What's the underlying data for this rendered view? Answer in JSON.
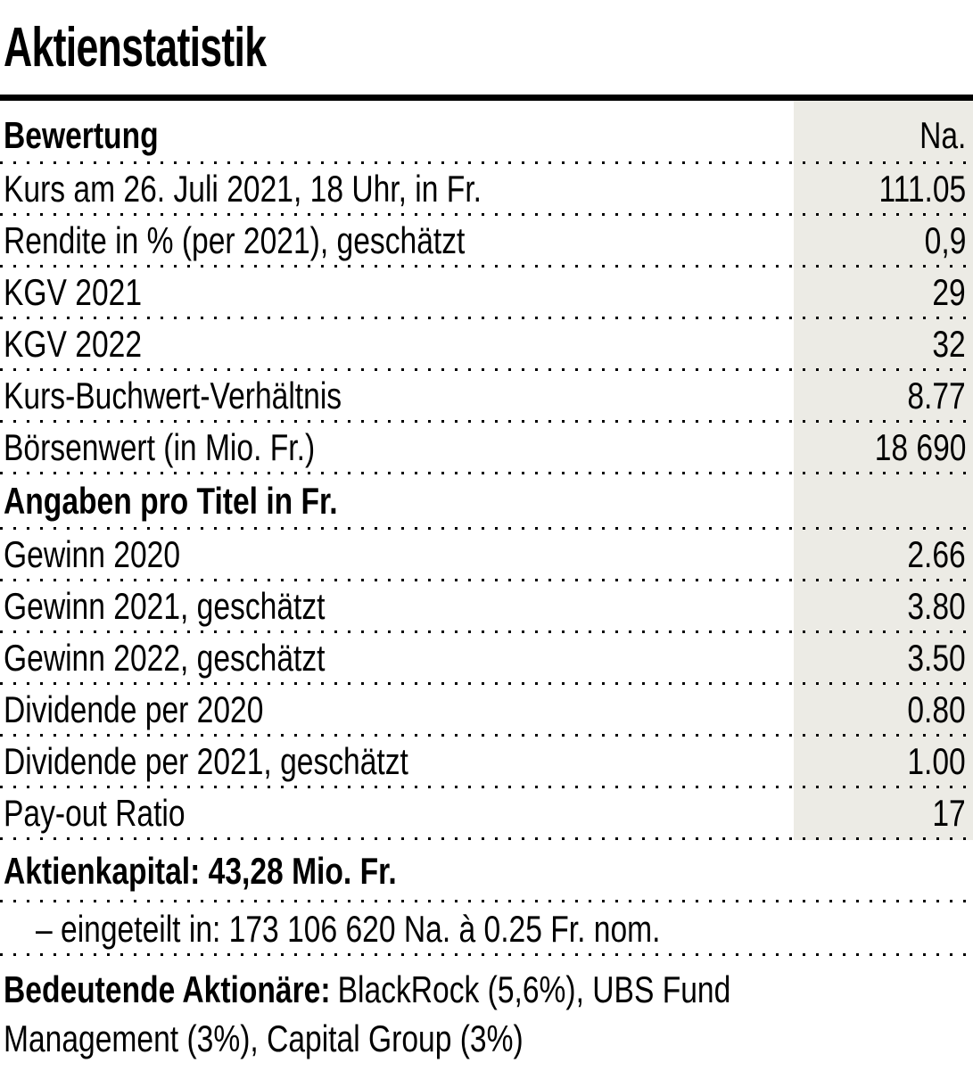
{
  "title": "Aktienstatistik",
  "table": {
    "value_column_header": "Na.",
    "sections": [
      {
        "header": "Bewertung",
        "rows": [
          {
            "label": "Kurs am 26. Juli 2021, 18 Uhr, in Fr.",
            "value": "111.05"
          },
          {
            "label": "Rendite in % (per 2021), geschätzt",
            "value": "0,9"
          },
          {
            "label": "KGV 2021",
            "value": "29"
          },
          {
            "label": "KGV 2022",
            "value": "32"
          },
          {
            "label": "Kurs-Buchwert-Verhältnis",
            "value": "8.77"
          },
          {
            "label": "Börsenwert (in Mio. Fr.)",
            "value": "18 690"
          }
        ]
      },
      {
        "header": "Angaben pro Titel in Fr.",
        "rows": [
          {
            "label": "Gewinn 2020",
            "value": "2.66"
          },
          {
            "label": "Gewinn 2021, geschätzt",
            "value": "3.80"
          },
          {
            "label": "Gewinn 2022, geschätzt",
            "value": "3.50"
          },
          {
            "label": "Dividende per 2020",
            "value": "0.80"
          },
          {
            "label": "Dividende per 2021, geschätzt",
            "value": "1.00"
          },
          {
            "label": "Pay-out Ratio",
            "value": "17"
          }
        ]
      }
    ]
  },
  "footer": {
    "share_capital": "Aktienkapital: 43,28 Mio. Fr.",
    "share_capital_detail": "– eingeteilt in: 173 106 620 Na. à 0.25 Fr. nom.",
    "shareholders_label": "Bedeutende Aktionäre:",
    "shareholders_lines": [
      "BlackRock (5,6%), UBS Fund",
      "Management (3%), Capital Group (3%)"
    ]
  },
  "colors": {
    "value_column_bg": "#ECEBE5",
    "rule": "#000000",
    "text": "#000000"
  }
}
